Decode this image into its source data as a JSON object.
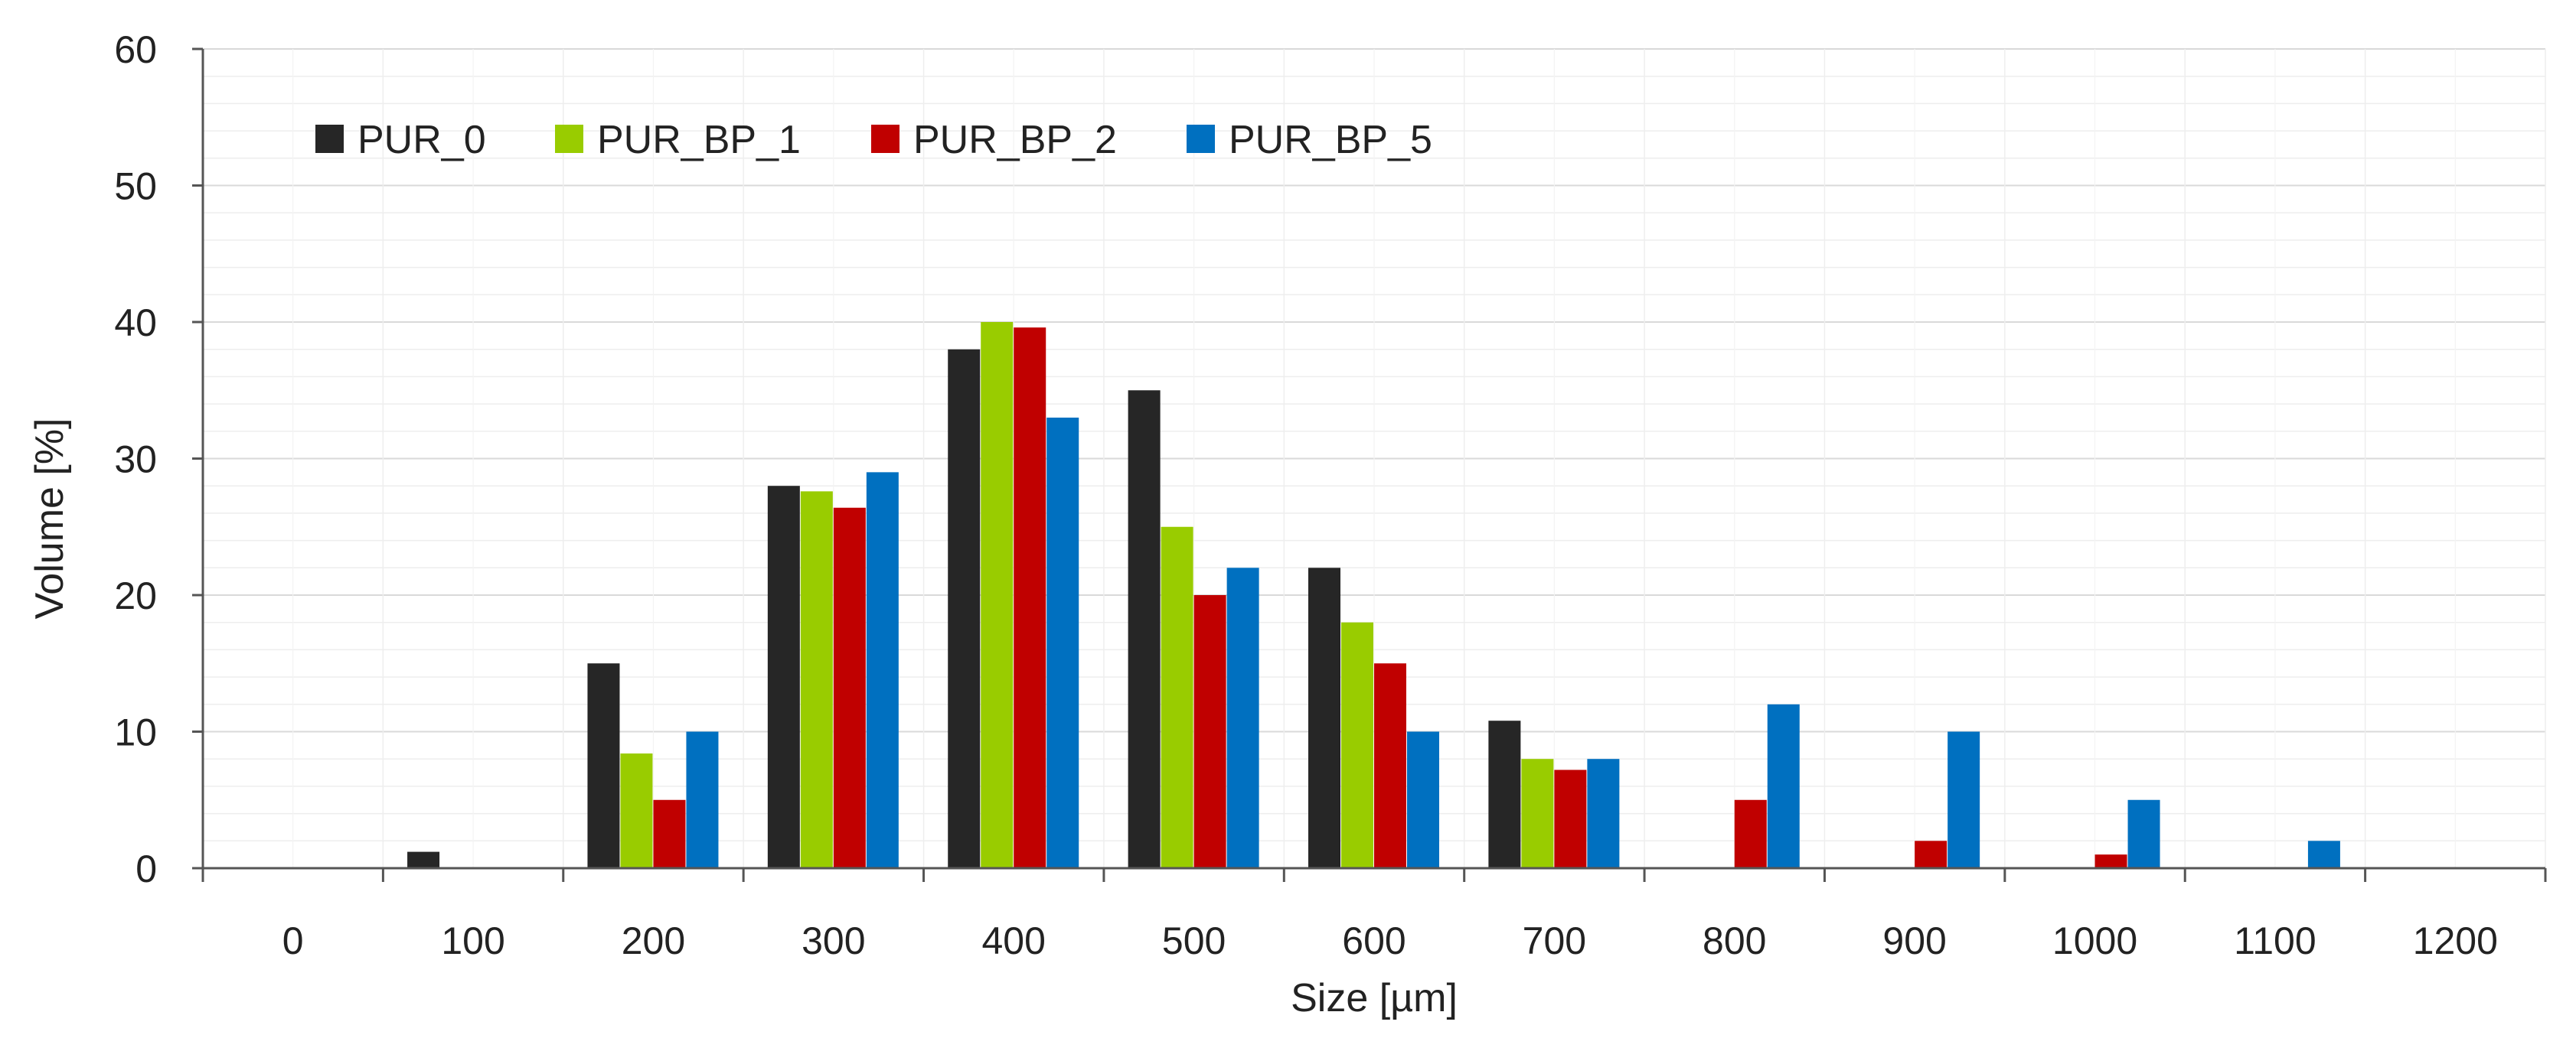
{
  "chart_data": {
    "type": "bar",
    "xlabel": "Size [µm]",
    "ylabel": "Volume [%]",
    "categories": [
      "0",
      "100",
      "200",
      "300",
      "400",
      "500",
      "600",
      "700",
      "800",
      "900",
      "1000",
      "1100",
      "1200"
    ],
    "ylim": [
      0,
      60
    ],
    "yticks": [
      0,
      10,
      20,
      30,
      40,
      50,
      60
    ],
    "grid": true,
    "legend_position": "top-left",
    "series": [
      {
        "name": "PUR_0",
        "color": "#262626",
        "values": [
          0,
          1.2,
          15,
          28,
          38,
          35,
          22,
          10.8,
          0,
          0,
          0,
          0,
          0
        ]
      },
      {
        "name": "PUR_BP_1",
        "color": "#99CC00",
        "values": [
          0,
          0,
          8.4,
          27.6,
          40,
          25,
          18,
          8,
          0,
          0,
          0,
          0,
          0
        ]
      },
      {
        "name": "PUR_BP_2",
        "color": "#C00000",
        "values": [
          0,
          0,
          5,
          26.4,
          39.6,
          20,
          15,
          7.2,
          5,
          2,
          1,
          0,
          0
        ]
      },
      {
        "name": "PUR_BP_5",
        "color": "#0070C0",
        "values": [
          0,
          0,
          10,
          29,
          33,
          22,
          10,
          8,
          12,
          10,
          5,
          2,
          0
        ]
      }
    ]
  }
}
